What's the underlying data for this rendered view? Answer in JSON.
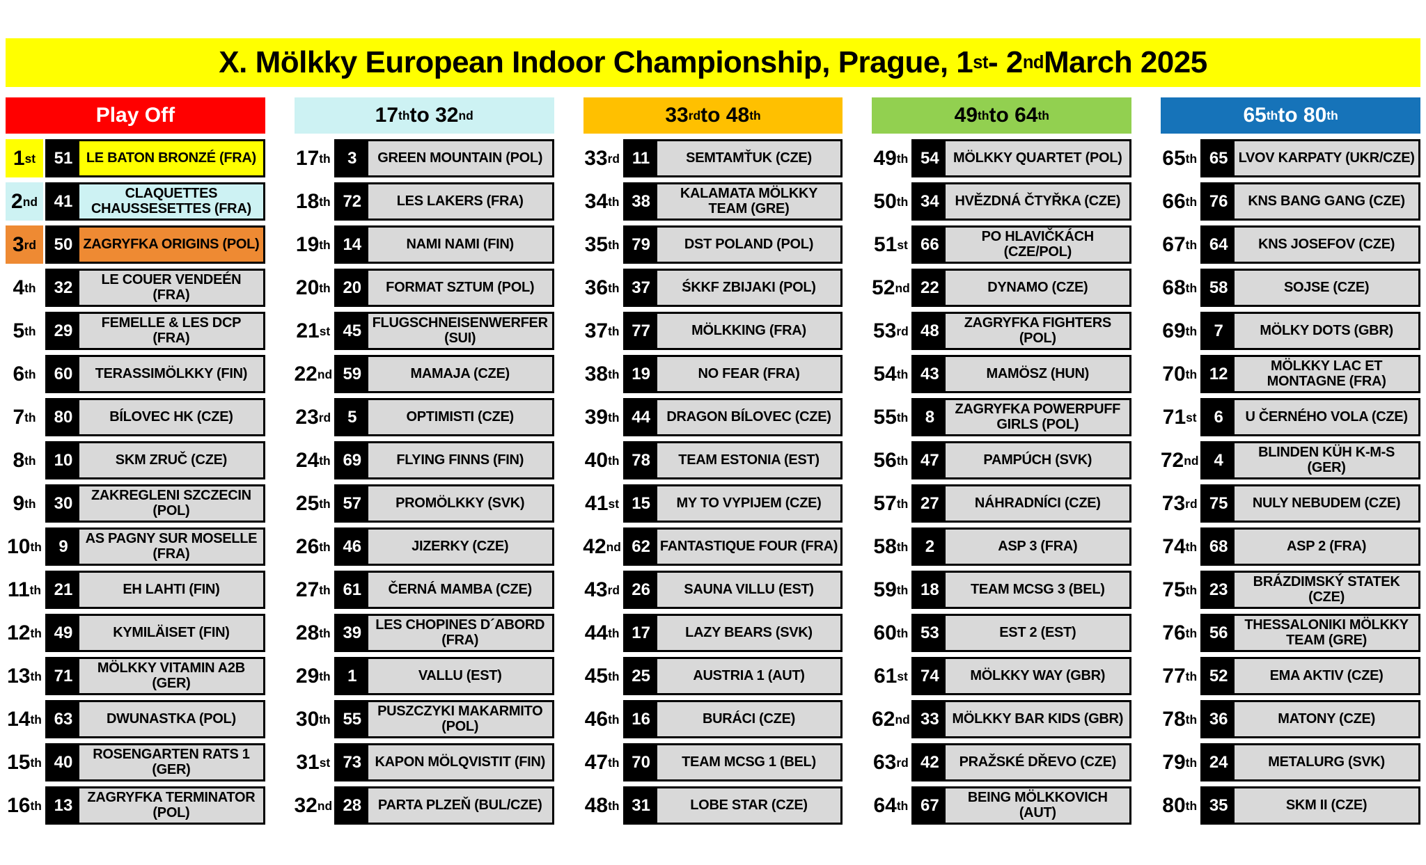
{
  "title": "X. Mölkky European Indoor Championship,  Prague,  1st - 2nd March 2025",
  "colors": {
    "title_bg": "#FFFF00",
    "row_bg": "#D9D9D9",
    "num_bg": "#000000",
    "highlight_1st": "#FFFF00",
    "highlight_2nd": "#CDF2F3",
    "highlight_3rd": "#EE8A33",
    "header_red": "#FF0000",
    "header_cyan": "#CDF2F3",
    "header_orange": "#FFC000",
    "header_green": "#92D050",
    "header_blue": "#1673B9"
  },
  "columns": [
    {
      "header": "Play Off",
      "header_bg": "#FF0000",
      "header_text": "#FFFFFF",
      "rows": [
        {
          "rank": "1st",
          "num": "51",
          "team": "LE BATON BRONZÉ (FRA)",
          "bg": "#FFFF00"
        },
        {
          "rank": "2nd",
          "num": "41",
          "team": "CLAQUETTES CHAUSSESETTES (FRA)",
          "bg": "#CDF2F3"
        },
        {
          "rank": "3rd",
          "num": "50",
          "team": "ZAGRYFKA ORIGINS (POL)",
          "bg": "#EE8A33"
        },
        {
          "rank": "4th",
          "num": "32",
          "team": "LE COUER VENDEÉN (FRA)"
        },
        {
          "rank": "5th",
          "num": "29",
          "team": "FEMELLE & LES DCP (FRA)"
        },
        {
          "rank": "6th",
          "num": "60",
          "team": "TERASSIMÖLKKY (FIN)"
        },
        {
          "rank": "7th",
          "num": "80",
          "team": "BÍLOVEC HK (CZE)"
        },
        {
          "rank": "8th",
          "num": "10",
          "team": "SKM ZRUČ  (CZE)"
        },
        {
          "rank": "9th",
          "num": "30",
          "team": "ZAKREGLENI SZCZECIN (POL)"
        },
        {
          "rank": "10th",
          "num": "9",
          "team": "AS PAGNY SUR MOSELLE (FRA)"
        },
        {
          "rank": "11th",
          "num": "21",
          "team": "EH LAHTI (FIN)"
        },
        {
          "rank": "12th",
          "num": "49",
          "team": "KYMILÄISET (FIN)"
        },
        {
          "rank": "13th",
          "num": "71",
          "team": "MÖLKKY VITAMIN A2B (GER)"
        },
        {
          "rank": "14th",
          "num": "63",
          "team": "DWUNASTKA  (POL)"
        },
        {
          "rank": "15th",
          "num": "40",
          "team": "ROSENGARTEN RATS 1 (GER)"
        },
        {
          "rank": "16th",
          "num": "13",
          "team": "ZAGRYFKA TERMINATOR (POL)"
        }
      ]
    },
    {
      "header": "17th to 32nd",
      "header_bg": "#CDF2F3",
      "header_text": "#000000",
      "rows": [
        {
          "rank": "17th",
          "num": "3",
          "team": "GREEN MOUNTAIN (POL)"
        },
        {
          "rank": "18th",
          "num": "72",
          "team": "LES LAKERS (FRA)"
        },
        {
          "rank": "19th",
          "num": "14",
          "team": "NAMI NAMI (FIN)"
        },
        {
          "rank": "20th",
          "num": "20",
          "team": "FORMAT SZTUM (POL)"
        },
        {
          "rank": "21st",
          "num": "45",
          "team": "FLUGSCHNEISENWERFER (SUI)"
        },
        {
          "rank": "22nd",
          "num": "59",
          "team": "MAMAJA (CZE)"
        },
        {
          "rank": "23rd",
          "num": "5",
          "team": "OPTIMISTI (CZE)"
        },
        {
          "rank": "24th",
          "num": "69",
          "team": "FLYING FINNS (FIN)"
        },
        {
          "rank": "25th",
          "num": "57",
          "team": "PROMÖLKKY  (SVK)"
        },
        {
          "rank": "26th",
          "num": "46",
          "team": "JIZERKY (CZE)"
        },
        {
          "rank": "27th",
          "num": "61",
          "team": "ČERNÁ MAMBA (CZE)"
        },
        {
          "rank": "28th",
          "num": "39",
          "team": "LES CHOPINES D´ABORD (FRA)"
        },
        {
          "rank": "29th",
          "num": "1",
          "team": "VALLU (EST)"
        },
        {
          "rank": "30th",
          "num": "55",
          "team": "PUSZCZYKI MAKARMITO (POL)"
        },
        {
          "rank": "31st",
          "num": "73",
          "team": "KAPON MÖLQVISTIT (FIN)"
        },
        {
          "rank": "32nd",
          "num": "28",
          "team": "PARTA PLZEŇ (BUL/CZE)"
        }
      ]
    },
    {
      "header": "33rd to 48th",
      "header_bg": "#FFC000",
      "header_text": "#000000",
      "rows": [
        {
          "rank": "33rd",
          "num": "11",
          "team": "SEMTAMŤUK (CZE)"
        },
        {
          "rank": "34th",
          "num": "38",
          "team": "KALAMATA MÖLKKY TEAM (GRE)"
        },
        {
          "rank": "35th",
          "num": "79",
          "team": "DST POLAND (POL)"
        },
        {
          "rank": "36th",
          "num": "37",
          "team": "ŚKKF ZBIJAKI (POL)"
        },
        {
          "rank": "37th",
          "num": "77",
          "team": "MÖLKKING (FRA)"
        },
        {
          "rank": "38th",
          "num": "19",
          "team": "NO FEAR (FRA)"
        },
        {
          "rank": "39th",
          "num": "44",
          "team": "DRAGON BÍLOVEC (CZE)"
        },
        {
          "rank": "40th",
          "num": "78",
          "team": "TEAM ESTONIA (EST)"
        },
        {
          "rank": "41st",
          "num": "15",
          "team": "MY TO VYPIJEM (CZE)"
        },
        {
          "rank": "42nd",
          "num": "62",
          "team": "FANTASTIQUE FOUR (FRA)"
        },
        {
          "rank": "43rd",
          "num": "26",
          "team": "SAUNA VILLU (EST)"
        },
        {
          "rank": "44th",
          "num": "17",
          "team": "LAZY BEARS (SVK)"
        },
        {
          "rank": "45th",
          "num": "25",
          "team": "AUSTRIA 1 (AUT)"
        },
        {
          "rank": "46th",
          "num": "16",
          "team": "BURÁCI  (CZE)"
        },
        {
          "rank": "47th",
          "num": "70",
          "team": "TEAM MCSG 1 (BEL)"
        },
        {
          "rank": "48th",
          "num": "31",
          "team": "LOBE STAR (CZE)"
        }
      ]
    },
    {
      "header": "49th to 64th",
      "header_bg": "#92D050",
      "header_text": "#000000",
      "rows": [
        {
          "rank": "49th",
          "num": "54",
          "team": "MÖLKKY QUARTET (POL)"
        },
        {
          "rank": "50th",
          "num": "34",
          "team": "HVĚZDNÁ ČTYŘKA (CZE)"
        },
        {
          "rank": "51st",
          "num": "66",
          "team": "PO HLAVIČKÁCH (CZE/POL)"
        },
        {
          "rank": "52nd",
          "num": "22",
          "team": "DYNAMO (CZE)"
        },
        {
          "rank": "53rd",
          "num": "48",
          "team": "ZAGRYFKA FIGHTERS (POL)"
        },
        {
          "rank": "54th",
          "num": "43",
          "team": "MAMÖSZ (HUN)"
        },
        {
          "rank": "55th",
          "num": "8",
          "team": "ZAGRYFKA POWERPUFF GIRLS (POL)"
        },
        {
          "rank": "56th",
          "num": "47",
          "team": "PAMPÚCH (SVK)"
        },
        {
          "rank": "57th",
          "num": "27",
          "team": "NÁHRADNÍCI (CZE)"
        },
        {
          "rank": "58th",
          "num": "2",
          "team": "ASP 3 (FRA)"
        },
        {
          "rank": "59th",
          "num": "18",
          "team": "TEAM MCSG 3 (BEL)"
        },
        {
          "rank": "60th",
          "num": "53",
          "team": "EST 2 (EST)"
        },
        {
          "rank": "61st",
          "num": "74",
          "team": "MÖLKKY WAY (GBR)"
        },
        {
          "rank": "62nd",
          "num": "33",
          "team": "MÖLKKY BAR KIDS (GBR)"
        },
        {
          "rank": "63rd",
          "num": "42",
          "team": "PRAŽSKÉ DŘEVO (CZE)"
        },
        {
          "rank": "64th",
          "num": "67",
          "team": "BEING MÖLKKOVICH (AUT)"
        }
      ]
    },
    {
      "header": "65th to 80th",
      "header_bg": "#1673B9",
      "header_text": "#FFFFFF",
      "rows": [
        {
          "rank": "65th",
          "num": "65",
          "team": "LVOV KARPATY (UKR/CZE)"
        },
        {
          "rank": "66th",
          "num": "76",
          "team": "KNS BANG GANG (CZE)"
        },
        {
          "rank": "67th",
          "num": "64",
          "team": "KNS JOSEFOV (CZE)"
        },
        {
          "rank": "68th",
          "num": "58",
          "team": "SOJSE (CZE)"
        },
        {
          "rank": "69th",
          "num": "7",
          "team": "MÖLKY DOTS (GBR)"
        },
        {
          "rank": "70th",
          "num": "12",
          "team": "MÖLKKY LAC ET MONTAGNE (FRA)"
        },
        {
          "rank": "71st",
          "num": "6",
          "team": "U ČERNÉHO VOLA (CZE)"
        },
        {
          "rank": "72nd",
          "num": "4",
          "team": "BLINDEN KÜH K-M-S (GER)"
        },
        {
          "rank": "73rd",
          "num": "75",
          "team": "NULY NEBUDEM (CZE)"
        },
        {
          "rank": "74th",
          "num": "68",
          "team": "ASP 2 (FRA)"
        },
        {
          "rank": "75th",
          "num": "23",
          "team": "BRÁZDIMSKÝ STATEK (CZE)"
        },
        {
          "rank": "76th",
          "num": "56",
          "team": "THESSALONIKI MÖLKKY TEAM (GRE)"
        },
        {
          "rank": "77th",
          "num": "52",
          "team": "EMA AKTIV  (CZE)"
        },
        {
          "rank": "78th",
          "num": "36",
          "team": "MATONY (CZE)"
        },
        {
          "rank": "79th",
          "num": "24",
          "team": "METALURG (SVK)"
        },
        {
          "rank": "80th",
          "num": "35",
          "team": "SKM II (CZE)"
        }
      ]
    }
  ]
}
